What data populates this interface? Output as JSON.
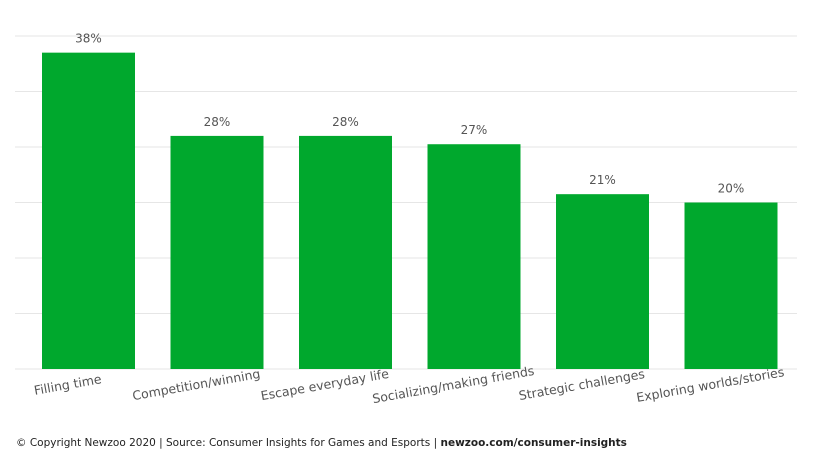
{
  "chart_data": {
    "type": "bar",
    "categories": [
      "Filling time",
      "Competition/winning",
      "Escape everyday life",
      "Socializing/making friends",
      "Strategic challenges",
      "Exploring worlds/stories"
    ],
    "values": [
      38,
      28,
      28,
      27,
      21,
      20
    ],
    "value_labels": [
      "38%",
      "28%",
      "28%",
      "27%",
      "21%",
      "20%"
    ],
    "unit": "%",
    "ylim": [
      0,
      40
    ],
    "grid": true,
    "bar_color": "#00a82d",
    "grid_color": "#e6e6e6",
    "label_color": "#555555"
  },
  "footer": {
    "text": "© Copyright Newzoo 2020 | Source: Consumer Insights for Games and Esports | ",
    "link": "newzoo.com/consumer-insights"
  }
}
